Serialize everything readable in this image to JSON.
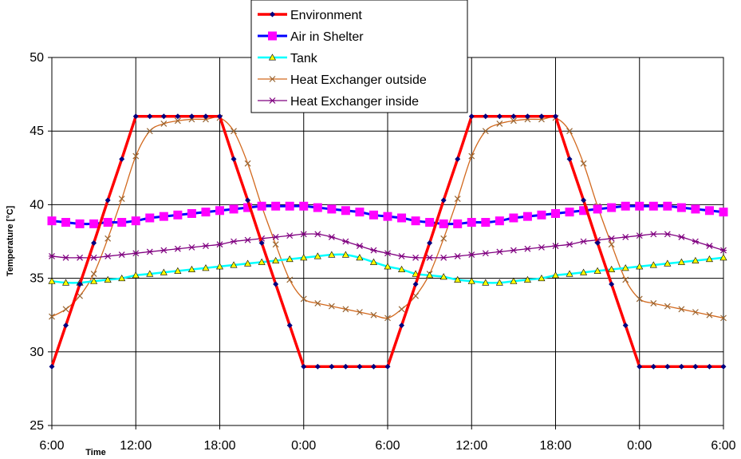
{
  "chart_data": {
    "type": "line",
    "title": "",
    "xlabel": "Time",
    "ylabel": "Temperature [°C]",
    "ylim": [
      25,
      50
    ],
    "yticks": [
      "25",
      "30",
      "35",
      "40",
      "45",
      "50"
    ],
    "xlim": [
      0,
      48
    ],
    "xticks": [
      "6:00",
      "12:00",
      "18:00",
      "0:00",
      "6:00",
      "12:00",
      "18:00",
      "0:00",
      "6:00"
    ],
    "grid": "vertical and horizontal",
    "legend_position": "top-center",
    "x": [
      0,
      1,
      2,
      3,
      4,
      5,
      6,
      7,
      8,
      9,
      10,
      11,
      12,
      13,
      14,
      15,
      16,
      17,
      18,
      19,
      20,
      21,
      22,
      23,
      24,
      25,
      26,
      27,
      28,
      29,
      30,
      31,
      32,
      33,
      34,
      35,
      36,
      37,
      38,
      39,
      40,
      41,
      42,
      43,
      44,
      45,
      46,
      47,
      48
    ],
    "series": [
      {
        "name": "Environment",
        "color": "#ff0000",
        "marker_color": "#000080",
        "marker": "diamond",
        "line_width": 3.5,
        "smooth": false,
        "values": [
          29,
          31.8,
          34.6,
          37.4,
          40.3,
          43.1,
          46,
          46,
          46,
          46,
          46,
          46,
          46,
          43.1,
          40.3,
          37.4,
          34.6,
          31.8,
          29,
          29,
          29,
          29,
          29,
          29,
          29,
          31.8,
          34.6,
          37.4,
          40.3,
          43.1,
          46,
          46,
          46,
          46,
          46,
          46,
          46,
          43.1,
          40.3,
          37.4,
          34.6,
          31.8,
          29,
          29,
          29,
          29,
          29,
          29,
          29
        ]
      },
      {
        "name": "Air in Shelter",
        "color": "#0000ff",
        "marker_color": "#ff00ff",
        "marker": "square",
        "line_width": 3,
        "smooth": true,
        "values": [
          38.9,
          38.8,
          38.7,
          38.7,
          38.8,
          38.8,
          38.9,
          39.1,
          39.2,
          39.3,
          39.4,
          39.5,
          39.6,
          39.7,
          39.8,
          39.9,
          39.9,
          39.9,
          39.9,
          39.8,
          39.7,
          39.6,
          39.5,
          39.3,
          39.2,
          39.1,
          38.9,
          38.8,
          38.7,
          38.7,
          38.8,
          38.8,
          38.9,
          39.1,
          39.2,
          39.3,
          39.4,
          39.5,
          39.6,
          39.7,
          39.8,
          39.9,
          39.9,
          39.9,
          39.9,
          39.8,
          39.7,
          39.6,
          39.5
        ]
      },
      {
        "name": "Tank",
        "color": "#00ffff",
        "marker_color": "#ffff00",
        "marker": "triangle",
        "line_width": 2.5,
        "smooth": true,
        "values": [
          34.8,
          34.7,
          34.7,
          34.8,
          34.9,
          35,
          35.2,
          35.3,
          35.4,
          35.5,
          35.6,
          35.7,
          35.8,
          35.9,
          36,
          36.1,
          36.2,
          36.3,
          36.4,
          36.5,
          36.6,
          36.6,
          36.4,
          36.1,
          35.8,
          35.6,
          35.3,
          35.2,
          35.1,
          34.9,
          34.8,
          34.7,
          34.7,
          34.8,
          34.9,
          35,
          35.2,
          35.3,
          35.4,
          35.5,
          35.6,
          35.7,
          35.8,
          35.9,
          36,
          36.1,
          36.2,
          36.3,
          36.4
        ]
      },
      {
        "name": "Heat Exchanger outside",
        "color": "#d2691e",
        "marker_color": "#996633",
        "marker": "x",
        "line_width": 1.3,
        "smooth": true,
        "values": [
          32.4,
          32.9,
          33.8,
          35.3,
          37.7,
          40.4,
          43.3,
          45,
          45.5,
          45.7,
          45.8,
          45.8,
          45.9,
          45,
          42.8,
          39.9,
          37.3,
          34.9,
          33.6,
          33.3,
          33.1,
          32.9,
          32.7,
          32.5,
          32.3,
          32.9,
          33.8,
          35.3,
          37.7,
          40.4,
          43.3,
          45,
          45.5,
          45.7,
          45.8,
          45.8,
          45.9,
          45,
          42.8,
          39.9,
          37.3,
          34.9,
          33.6,
          33.3,
          33.1,
          32.9,
          32.7,
          32.5,
          32.3
        ]
      },
      {
        "name": "Heat Exchanger inside",
        "color": "#800080",
        "marker_color": "#800080",
        "marker": "star",
        "line_width": 1.3,
        "smooth": true,
        "values": [
          36.5,
          36.4,
          36.4,
          36.4,
          36.5,
          36.6,
          36.7,
          36.8,
          36.9,
          37,
          37.1,
          37.2,
          37.3,
          37.5,
          37.6,
          37.7,
          37.8,
          37.9,
          38,
          38,
          37.8,
          37.5,
          37.2,
          36.9,
          36.7,
          36.5,
          36.4,
          36.4,
          36.4,
          36.5,
          36.6,
          36.7,
          36.8,
          36.9,
          37,
          37.1,
          37.2,
          37.3,
          37.5,
          37.6,
          37.7,
          37.8,
          37.9,
          38,
          38,
          37.8,
          37.5,
          37.2,
          36.9
        ]
      }
    ]
  }
}
